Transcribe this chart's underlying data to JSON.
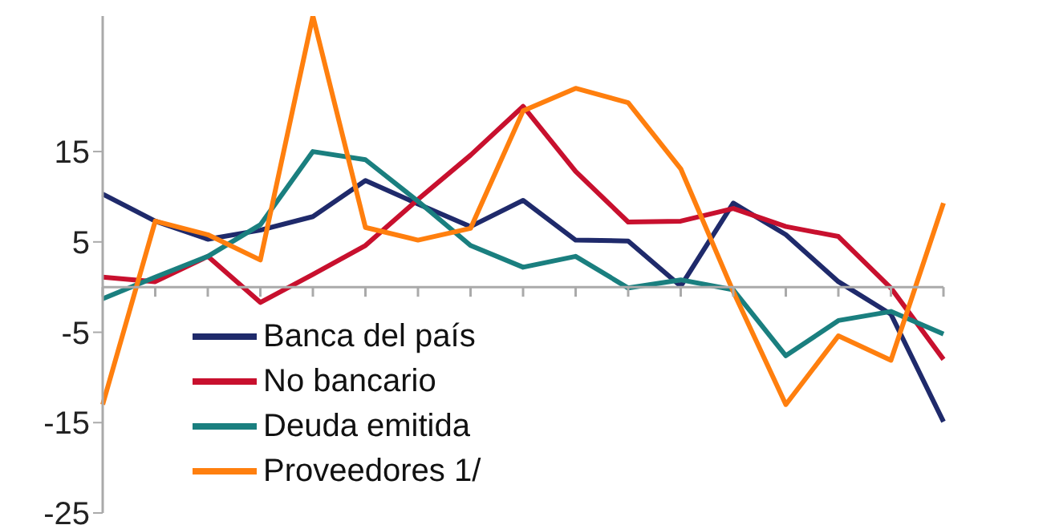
{
  "chart_data": {
    "type": "line",
    "categories": [
      null,
      null,
      null,
      null,
      null,
      null,
      null,
      null,
      null,
      null,
      null,
      null,
      null,
      null,
      null,
      null,
      null
    ],
    "series": [
      {
        "name": "Banca del país",
        "color": "#1f2a6b",
        "values": [
          10.3,
          7.3,
          5.3,
          6.3,
          7.8,
          11.8,
          9.2,
          6.7,
          9.6,
          5.2,
          5.1,
          0.1,
          9.3,
          5.8,
          0.6,
          -3.0,
          -14.9
        ]
      },
      {
        "name": "No bancario",
        "color": "#c8102e",
        "values": [
          1.1,
          0.6,
          3.4,
          -1.7,
          1.4,
          4.6,
          9.7,
          14.6,
          20,
          12.8,
          7.2,
          7.3,
          8.7,
          6.7,
          5.6,
          -0.1,
          -8.0
        ]
      },
      {
        "name": "Deuda emitida",
        "color": "#1a7f7f",
        "values": [
          -1.3,
          1.1,
          3.4,
          6.9,
          15.0,
          14.1,
          9.5,
          4.6,
          2.2,
          3.4,
          -0.1,
          0.8,
          -0.3,
          -7.6,
          -3.7,
          -2.7,
          -5.2
        ]
      },
      {
        "name": "Proveedores 1/",
        "color": "#ff7f0e",
        "values": [
          -13.0,
          7.3,
          5.8,
          3.0,
          30,
          6.6,
          5.2,
          6.5,
          19.5,
          22,
          20.4,
          13.1,
          -0.5,
          -13.0,
          -5.4,
          -8.1,
          9.3
        ]
      }
    ],
    "ylim": [
      -25,
      30
    ],
    "yticks": [
      -25,
      -15,
      -5,
      5,
      15
    ],
    "grid": false,
    "legend": "bottom left",
    "marker": "none",
    "line_style": "solid",
    "tick_labels": "y"
  }
}
